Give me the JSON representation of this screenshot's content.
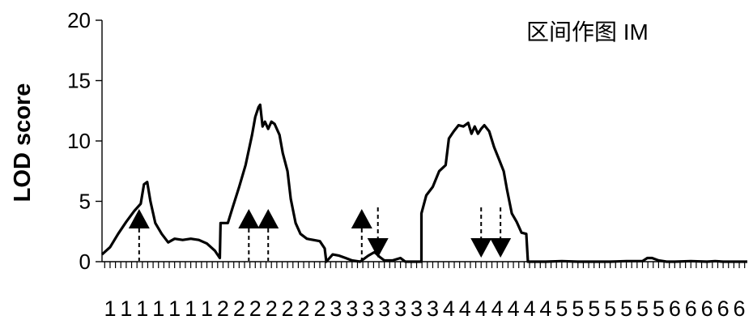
{
  "chart_data": {
    "type": "line",
    "annotation": "区间作图 IM",
    "ylabel": "LOD score",
    "xlabel": "",
    "ylim": [
      0,
      20
    ],
    "yticks": [
      0,
      5,
      10,
      15,
      20
    ],
    "xtick_labels": [
      "1",
      "1",
      "1",
      "1",
      "1",
      "1",
      "1",
      "2",
      "2",
      "2",
      "2",
      "2",
      "2",
      "2",
      "3",
      "3",
      "3",
      "3",
      "3",
      "3",
      "3",
      "4",
      "4",
      "4",
      "4",
      "4",
      "4",
      "4",
      "5",
      "5",
      "5",
      "5",
      "5",
      "5",
      "5",
      "6",
      "6",
      "6",
      "6",
      "6"
    ],
    "x_positions": [
      0,
      1,
      2,
      3,
      4,
      5,
      6,
      7,
      8,
      9,
      10,
      11,
      12,
      13,
      14,
      15,
      16,
      17,
      18,
      19,
      20,
      21,
      22,
      23,
      24,
      25,
      26,
      27,
      28,
      29,
      30,
      31,
      32,
      33,
      34,
      35,
      36,
      37,
      38,
      39
    ],
    "xlim": [
      -0.5,
      39.5
    ],
    "minor_ticks_per_unit": 3,
    "series": [
      {
        "color": "#000000",
        "points": [
          [
            -0.5,
            0.6
          ],
          [
            0,
            1.2
          ],
          [
            0.5,
            2.3
          ],
          [
            1,
            3.3
          ],
          [
            1.5,
            4.2
          ],
          [
            1.9,
            4.8
          ],
          [
            2.1,
            6.4
          ],
          [
            2.3,
            6.6
          ],
          [
            2.5,
            5.0
          ],
          [
            2.8,
            3.2
          ],
          [
            3.2,
            2.3
          ],
          [
            3.6,
            1.6
          ],
          [
            4,
            1.9
          ],
          [
            4.5,
            1.8
          ],
          [
            5,
            1.9
          ],
          [
            5.5,
            1.8
          ],
          [
            6,
            1.5
          ],
          [
            6.5,
            0.9
          ],
          [
            6.8,
            0.3
          ],
          [
            6.85,
            3.2
          ],
          [
            7.3,
            3.2
          ],
          [
            7.6,
            4.5
          ],
          [
            8,
            6.2
          ],
          [
            8.4,
            8.0
          ],
          [
            8.8,
            10.5
          ],
          [
            9,
            12.0
          ],
          [
            9.2,
            12.8
          ],
          [
            9.3,
            13.0
          ],
          [
            9.45,
            11.2
          ],
          [
            9.6,
            11.6
          ],
          [
            9.8,
            11.0
          ],
          [
            10,
            11.6
          ],
          [
            10.2,
            11.4
          ],
          [
            10.5,
            10.5
          ],
          [
            10.7,
            9.0
          ],
          [
            11,
            7.5
          ],
          [
            11.2,
            5.2
          ],
          [
            11.5,
            3.2
          ],
          [
            11.8,
            2.3
          ],
          [
            12.2,
            1.9
          ],
          [
            12.6,
            1.8
          ],
          [
            13,
            1.7
          ],
          [
            13.3,
            1.1
          ],
          [
            13.4,
            0
          ],
          [
            13.8,
            0.6
          ],
          [
            14.2,
            0.5
          ],
          [
            14.6,
            0.3
          ],
          [
            15,
            0.1
          ],
          [
            15.5,
            0
          ],
          [
            16,
            0.5
          ],
          [
            16.4,
            0.8
          ],
          [
            16.7,
            0.4
          ],
          [
            17,
            0.1
          ],
          [
            17.5,
            0.1
          ],
          [
            18,
            0.3
          ],
          [
            18.3,
            0
          ],
          [
            19,
            0
          ],
          [
            19.3,
            0
          ],
          [
            19.3,
            4.0
          ],
          [
            19.6,
            5.5
          ],
          [
            20,
            6.2
          ],
          [
            20.4,
            7.5
          ],
          [
            20.8,
            8.0
          ],
          [
            21,
            10.2
          ],
          [
            21.3,
            10.8
          ],
          [
            21.6,
            11.3
          ],
          [
            21.9,
            11.2
          ],
          [
            22.2,
            11.5
          ],
          [
            22.4,
            10.6
          ],
          [
            22.6,
            11.2
          ],
          [
            22.8,
            10.6
          ],
          [
            23,
            11.0
          ],
          [
            23.2,
            11.3
          ],
          [
            23.5,
            10.8
          ],
          [
            23.8,
            9.5
          ],
          [
            24.1,
            8.5
          ],
          [
            24.4,
            7.5
          ],
          [
            24.6,
            6.0
          ],
          [
            24.9,
            4.0
          ],
          [
            25.2,
            3.3
          ],
          [
            25.5,
            2.4
          ],
          [
            25.8,
            2.3
          ],
          [
            25.9,
            0
          ],
          [
            26.2,
            0
          ],
          [
            27,
            0
          ],
          [
            28,
            0.05
          ],
          [
            29,
            0
          ],
          [
            30,
            0
          ],
          [
            31,
            0
          ],
          [
            32,
            0.05
          ],
          [
            33,
            0.05
          ],
          [
            33.3,
            0.3
          ],
          [
            33.6,
            0.3
          ],
          [
            34,
            0.1
          ],
          [
            34.5,
            0
          ],
          [
            35,
            0
          ],
          [
            36,
            0.05
          ],
          [
            37,
            0
          ],
          [
            37.5,
            0.05
          ],
          [
            38,
            0
          ],
          [
            39,
            0
          ],
          [
            39.5,
            0
          ]
        ]
      }
    ],
    "markers": [
      {
        "x": 1.8,
        "direction": "up"
      },
      {
        "x": 8.6,
        "direction": "up"
      },
      {
        "x": 9.8,
        "direction": "up"
      },
      {
        "x": 15.6,
        "direction": "up"
      },
      {
        "x": 16.6,
        "direction": "down"
      },
      {
        "x": 23.0,
        "direction": "down"
      },
      {
        "x": 24.2,
        "direction": "down"
      }
    ]
  }
}
